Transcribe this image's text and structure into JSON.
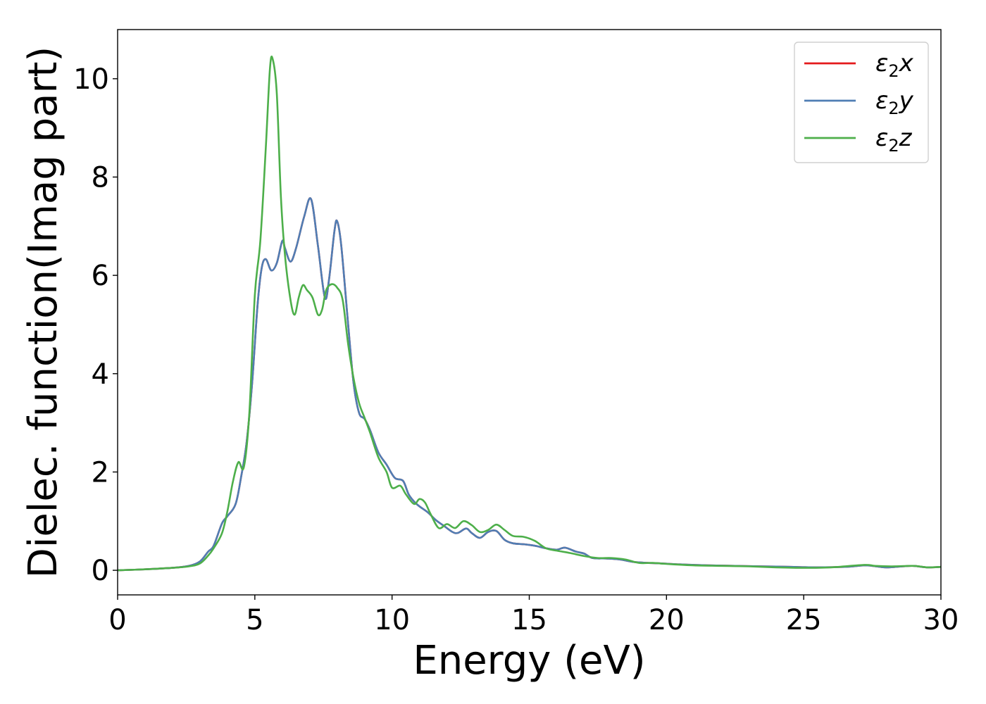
{
  "chart_data": {
    "type": "line",
    "xlabel": "Energy (eV)",
    "ylabel": "Dielec. function(Imag part)",
    "xlim": [
      0,
      30
    ],
    "ylim": [
      -0.5,
      11
    ],
    "xticks": [
      "0",
      "5",
      "10",
      "15",
      "20",
      "25",
      "30"
    ],
    "yticks": [
      "0",
      "2",
      "4",
      "6",
      "8",
      "10"
    ],
    "grid": false,
    "legend_position": "top-right",
    "series": [
      {
        "name": "ε2x",
        "legend_base": "ε",
        "legend_sub": "2",
        "legend_var": "x",
        "color": "#e41a1c",
        "points": [
          [
            0,
            0
          ],
          [
            1,
            0.02
          ],
          [
            2,
            0.05
          ],
          [
            2.6,
            0.09
          ],
          [
            3,
            0.18
          ],
          [
            3.3,
            0.38
          ],
          [
            3.5,
            0.5
          ],
          [
            3.8,
            0.95
          ],
          [
            4,
            1.1
          ],
          [
            4.3,
            1.35
          ],
          [
            4.5,
            1.9
          ],
          [
            4.7,
            2.6
          ],
          [
            4.9,
            3.8
          ],
          [
            5.1,
            5.4
          ],
          [
            5.25,
            6.15
          ],
          [
            5.4,
            6.33
          ],
          [
            5.6,
            6.1
          ],
          [
            5.8,
            6.25
          ],
          [
            6.0,
            6.7
          ],
          [
            6.1,
            6.55
          ],
          [
            6.3,
            6.28
          ],
          [
            6.5,
            6.55
          ],
          [
            6.8,
            7.2
          ],
          [
            7.05,
            7.55
          ],
          [
            7.3,
            6.6
          ],
          [
            7.55,
            5.55
          ],
          [
            7.7,
            5.9
          ],
          [
            7.9,
            6.9
          ],
          [
            8.0,
            7.1
          ],
          [
            8.15,
            6.6
          ],
          [
            8.4,
            5.0
          ],
          [
            8.6,
            3.8
          ],
          [
            8.8,
            3.2
          ],
          [
            9.0,
            3.08
          ],
          [
            9.2,
            2.85
          ],
          [
            9.5,
            2.4
          ],
          [
            9.8,
            2.15
          ],
          [
            10.1,
            1.88
          ],
          [
            10.4,
            1.82
          ],
          [
            10.6,
            1.55
          ],
          [
            10.8,
            1.4
          ],
          [
            11.0,
            1.3
          ],
          [
            11.3,
            1.18
          ],
          [
            11.6,
            1.02
          ],
          [
            11.9,
            0.9
          ],
          [
            12.2,
            0.78
          ],
          [
            12.4,
            0.76
          ],
          [
            12.7,
            0.85
          ],
          [
            12.9,
            0.76
          ],
          [
            13.2,
            0.66
          ],
          [
            13.5,
            0.78
          ],
          [
            13.8,
            0.8
          ],
          [
            14.1,
            0.62
          ],
          [
            14.4,
            0.55
          ],
          [
            14.8,
            0.53
          ],
          [
            15.2,
            0.5
          ],
          [
            15.6,
            0.45
          ],
          [
            16.0,
            0.42
          ],
          [
            16.3,
            0.46
          ],
          [
            16.7,
            0.38
          ],
          [
            17.0,
            0.34
          ],
          [
            17.3,
            0.25
          ],
          [
            17.8,
            0.24
          ],
          [
            18.3,
            0.22
          ],
          [
            18.8,
            0.17
          ],
          [
            19.3,
            0.15
          ],
          [
            19.8,
            0.14
          ],
          [
            20.5,
            0.12
          ],
          [
            21.5,
            0.1
          ],
          [
            22.5,
            0.09
          ],
          [
            23.5,
            0.08
          ],
          [
            24.5,
            0.07
          ],
          [
            25.5,
            0.06
          ],
          [
            26.5,
            0.07
          ],
          [
            27.2,
            0.1
          ],
          [
            27.5,
            0.09
          ],
          [
            28.0,
            0.06
          ],
          [
            28.6,
            0.08
          ],
          [
            29.0,
            0.09
          ],
          [
            29.5,
            0.06
          ],
          [
            30,
            0.07
          ]
        ]
      },
      {
        "name": "ε2y",
        "legend_base": "ε",
        "legend_sub": "2",
        "legend_var": "y",
        "color": "#4f7eb4",
        "points": [
          [
            0,
            0
          ],
          [
            1,
            0.02
          ],
          [
            2,
            0.05
          ],
          [
            2.6,
            0.09
          ],
          [
            3,
            0.18
          ],
          [
            3.3,
            0.38
          ],
          [
            3.5,
            0.5
          ],
          [
            3.8,
            0.95
          ],
          [
            4,
            1.1
          ],
          [
            4.3,
            1.35
          ],
          [
            4.5,
            1.9
          ],
          [
            4.7,
            2.6
          ],
          [
            4.9,
            3.8
          ],
          [
            5.1,
            5.4
          ],
          [
            5.25,
            6.15
          ],
          [
            5.4,
            6.33
          ],
          [
            5.6,
            6.1
          ],
          [
            5.8,
            6.25
          ],
          [
            6.0,
            6.7
          ],
          [
            6.1,
            6.55
          ],
          [
            6.3,
            6.28
          ],
          [
            6.5,
            6.55
          ],
          [
            6.8,
            7.2
          ],
          [
            7.05,
            7.55
          ],
          [
            7.3,
            6.6
          ],
          [
            7.55,
            5.55
          ],
          [
            7.7,
            5.9
          ],
          [
            7.9,
            6.9
          ],
          [
            8.0,
            7.1
          ],
          [
            8.15,
            6.6
          ],
          [
            8.4,
            5.0
          ],
          [
            8.6,
            3.8
          ],
          [
            8.8,
            3.2
          ],
          [
            9.0,
            3.08
          ],
          [
            9.2,
            2.85
          ],
          [
            9.5,
            2.4
          ],
          [
            9.8,
            2.15
          ],
          [
            10.1,
            1.88
          ],
          [
            10.4,
            1.82
          ],
          [
            10.6,
            1.55
          ],
          [
            10.8,
            1.4
          ],
          [
            11.0,
            1.3
          ],
          [
            11.3,
            1.18
          ],
          [
            11.6,
            1.02
          ],
          [
            11.9,
            0.9
          ],
          [
            12.2,
            0.78
          ],
          [
            12.4,
            0.76
          ],
          [
            12.7,
            0.85
          ],
          [
            12.9,
            0.76
          ],
          [
            13.2,
            0.66
          ],
          [
            13.5,
            0.78
          ],
          [
            13.8,
            0.8
          ],
          [
            14.1,
            0.62
          ],
          [
            14.4,
            0.55
          ],
          [
            14.8,
            0.53
          ],
          [
            15.2,
            0.5
          ],
          [
            15.6,
            0.45
          ],
          [
            16.0,
            0.42
          ],
          [
            16.3,
            0.46
          ],
          [
            16.7,
            0.38
          ],
          [
            17.0,
            0.34
          ],
          [
            17.3,
            0.25
          ],
          [
            17.8,
            0.24
          ],
          [
            18.3,
            0.22
          ],
          [
            18.8,
            0.17
          ],
          [
            19.3,
            0.15
          ],
          [
            19.8,
            0.14
          ],
          [
            20.5,
            0.12
          ],
          [
            21.5,
            0.1
          ],
          [
            22.5,
            0.09
          ],
          [
            23.5,
            0.08
          ],
          [
            24.5,
            0.07
          ],
          [
            25.5,
            0.06
          ],
          [
            26.5,
            0.07
          ],
          [
            27.2,
            0.1
          ],
          [
            27.5,
            0.09
          ],
          [
            28.0,
            0.06
          ],
          [
            28.6,
            0.08
          ],
          [
            29.0,
            0.09
          ],
          [
            29.5,
            0.06
          ],
          [
            30,
            0.07
          ]
        ]
      },
      {
        "name": "ε2z",
        "legend_base": "ε",
        "legend_sub": "2",
        "legend_var": "z",
        "color": "#4daf4a",
        "points": [
          [
            0,
            0
          ],
          [
            1,
            0.02
          ],
          [
            2,
            0.05
          ],
          [
            2.6,
            0.08
          ],
          [
            3,
            0.14
          ],
          [
            3.3,
            0.3
          ],
          [
            3.5,
            0.45
          ],
          [
            3.8,
            0.75
          ],
          [
            4.0,
            1.2
          ],
          [
            4.2,
            1.8
          ],
          [
            4.4,
            2.2
          ],
          [
            4.6,
            2.1
          ],
          [
            4.8,
            3.2
          ],
          [
            5.0,
            5.6
          ],
          [
            5.2,
            6.7
          ],
          [
            5.4,
            8.6
          ],
          [
            5.55,
            10.2
          ],
          [
            5.65,
            10.4
          ],
          [
            5.8,
            9.7
          ],
          [
            5.95,
            7.6
          ],
          [
            6.1,
            6.4
          ],
          [
            6.3,
            5.5
          ],
          [
            6.45,
            5.2
          ],
          [
            6.6,
            5.55
          ],
          [
            6.75,
            5.8
          ],
          [
            6.9,
            5.7
          ],
          [
            7.1,
            5.55
          ],
          [
            7.3,
            5.2
          ],
          [
            7.45,
            5.3
          ],
          [
            7.6,
            5.7
          ],
          [
            7.8,
            5.82
          ],
          [
            8.0,
            5.75
          ],
          [
            8.2,
            5.5
          ],
          [
            8.4,
            4.6
          ],
          [
            8.6,
            3.9
          ],
          [
            8.8,
            3.4
          ],
          [
            9.0,
            3.1
          ],
          [
            9.2,
            2.8
          ],
          [
            9.5,
            2.3
          ],
          [
            9.8,
            2.0
          ],
          [
            10.0,
            1.68
          ],
          [
            10.3,
            1.72
          ],
          [
            10.5,
            1.55
          ],
          [
            10.8,
            1.35
          ],
          [
            11.0,
            1.45
          ],
          [
            11.2,
            1.38
          ],
          [
            11.4,
            1.15
          ],
          [
            11.7,
            0.86
          ],
          [
            12.0,
            0.94
          ],
          [
            12.3,
            0.86
          ],
          [
            12.6,
            1.0
          ],
          [
            12.9,
            0.92
          ],
          [
            13.2,
            0.78
          ],
          [
            13.5,
            0.82
          ],
          [
            13.8,
            0.93
          ],
          [
            14.1,
            0.82
          ],
          [
            14.4,
            0.7
          ],
          [
            14.8,
            0.68
          ],
          [
            15.2,
            0.6
          ],
          [
            15.6,
            0.45
          ],
          [
            16.0,
            0.4
          ],
          [
            16.5,
            0.35
          ],
          [
            17.0,
            0.29
          ],
          [
            17.5,
            0.25
          ],
          [
            18.0,
            0.25
          ],
          [
            18.5,
            0.22
          ],
          [
            19.0,
            0.15
          ],
          [
            19.5,
            0.15
          ],
          [
            20.0,
            0.13
          ],
          [
            21.0,
            0.1
          ],
          [
            22.0,
            0.09
          ],
          [
            23.0,
            0.08
          ],
          [
            24.0,
            0.06
          ],
          [
            25.0,
            0.05
          ],
          [
            26.0,
            0.06
          ],
          [
            27.2,
            0.11
          ],
          [
            27.6,
            0.09
          ],
          [
            28.2,
            0.08
          ],
          [
            29.0,
            0.09
          ],
          [
            29.5,
            0.06
          ],
          [
            30,
            0.07
          ]
        ]
      }
    ]
  }
}
